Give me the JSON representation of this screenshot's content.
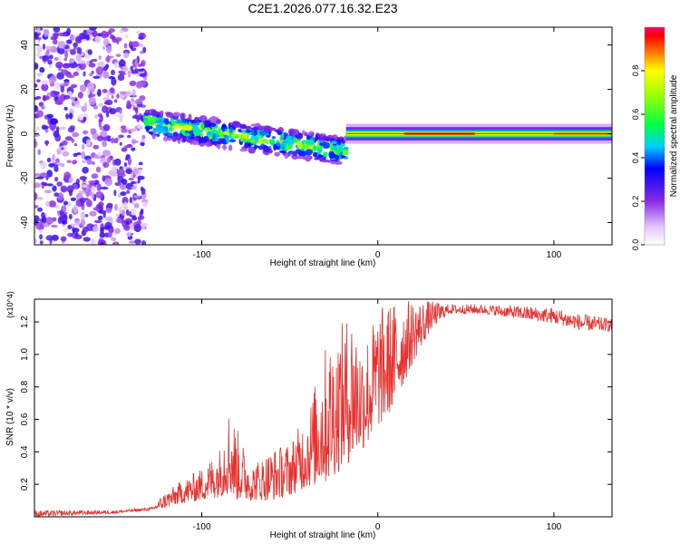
{
  "title": "C2E1.2026.077.16.32.E23",
  "chart_data": [
    {
      "type": "heatmap",
      "name": "spectrogram",
      "xlabel": "Height of straight line (km)",
      "ylabel": "Frequency (Hz)",
      "xlim": [
        -195,
        133
      ],
      "ylim": [
        -50,
        48
      ],
      "xticks": [
        -100,
        0,
        100
      ],
      "yticks": [
        -40,
        -20,
        0,
        20,
        40
      ],
      "colorbar": {
        "label": "Normalized spectral amplitude",
        "range": [
          0,
          1
        ],
        "ticks": [
          "0.0",
          "0.2",
          "0.4",
          "0.6",
          "0.8"
        ],
        "tick_values": [
          0.0,
          0.2,
          0.4,
          0.6,
          0.8
        ]
      },
      "regions": [
        {
          "name": "noise",
          "x_range": [
            -195,
            -132
          ],
          "f_range": [
            -50,
            48
          ],
          "amplitude": 0.15
        },
        {
          "name": "drifting-band",
          "x_range": [
            -132,
            -18
          ],
          "f_center_start": 5,
          "f_center_end": -8,
          "amplitude": 0.5
        },
        {
          "name": "carrier-line",
          "x_range": [
            -18,
            133
          ],
          "f_center": 0,
          "amplitude": 0.95
        }
      ]
    },
    {
      "type": "line",
      "name": "snr",
      "xlabel": "Height of straight line (km)",
      "ylabel": "SNR (10 * v/v)",
      "y_multiplier": "(x10^4)",
      "xlim": [
        -195,
        133
      ],
      "ylim": [
        0,
        1.34
      ],
      "xticks": [
        -100,
        0,
        100
      ],
      "yticks": [
        0.2,
        0.4,
        0.6,
        0.8,
        1.0,
        1.2
      ],
      "ytick_labels": [
        "0.2",
        "0.4",
        "0.6",
        "0.8",
        "1.0",
        "1.2"
      ],
      "color": "#e8302e",
      "envelope": {
        "x": [
          -195,
          -150,
          -128,
          -122,
          -112,
          -100,
          -90,
          -85,
          -80,
          -72,
          -60,
          -50,
          -40,
          -30,
          -20,
          -14,
          -10,
          -5,
          0,
          5,
          10,
          20,
          30,
          40,
          60,
          80,
          100,
          115,
          133
        ],
        "y_min": [
          0.0,
          0.02,
          0.04,
          0.05,
          0.08,
          0.1,
          0.12,
          0.14,
          0.1,
          0.1,
          0.1,
          0.13,
          0.18,
          0.2,
          0.3,
          0.35,
          0.4,
          0.45,
          0.55,
          0.6,
          0.7,
          0.95,
          1.15,
          1.25,
          1.25,
          1.22,
          1.19,
          1.15,
          1.14
        ],
        "y_max": [
          0.04,
          0.04,
          0.06,
          0.14,
          0.22,
          0.3,
          0.42,
          0.68,
          0.55,
          0.32,
          0.42,
          0.46,
          0.65,
          1.05,
          1.2,
          1.3,
          1.1,
          1.15,
          1.28,
          1.32,
          1.33,
          1.34,
          1.33,
          1.31,
          1.31,
          1.3,
          1.29,
          1.25,
          1.22
        ]
      }
    }
  ]
}
